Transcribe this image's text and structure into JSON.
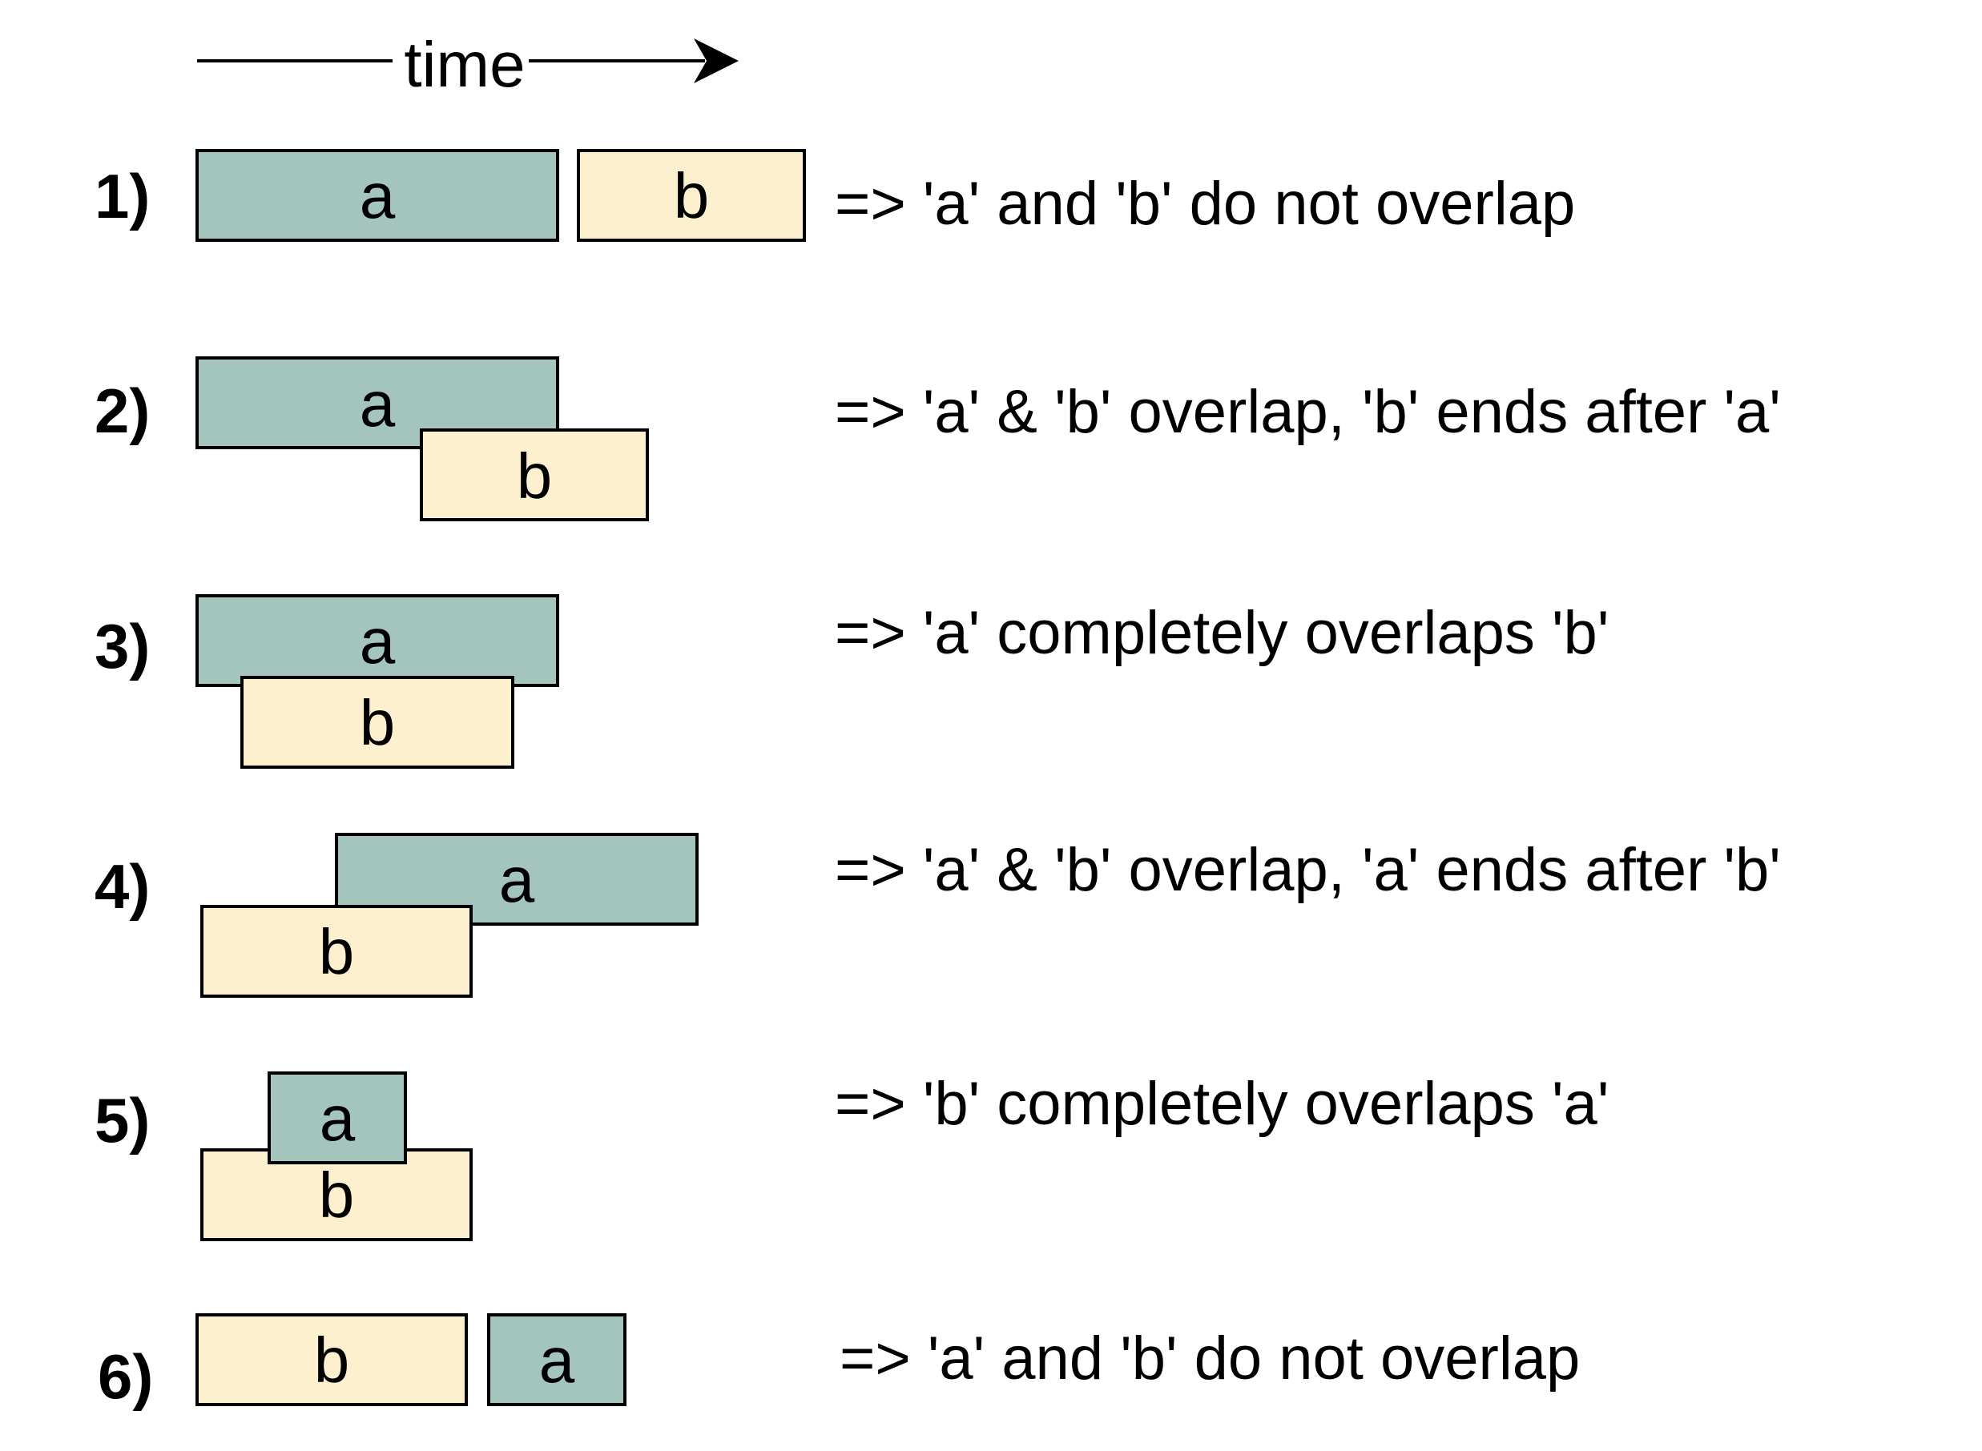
{
  "time_axis": {
    "label": "time"
  },
  "colors": {
    "a": "#a3c5bd",
    "b": "#fdf0cf",
    "stroke": "#000000"
  },
  "rows": [
    {
      "number": "1)",
      "a_label": "a",
      "b_label": "b",
      "description": "=> 'a' and 'b' do not overlap"
    },
    {
      "number": "2)",
      "a_label": "a",
      "b_label": "b",
      "description": "=> 'a' & 'b' overlap, 'b' ends after 'a'"
    },
    {
      "number": "3)",
      "a_label": "a",
      "b_label": "b",
      "description": "=> 'a' completely overlaps 'b'"
    },
    {
      "number": "4)",
      "a_label": "a",
      "b_label": "b",
      "description": "=> 'a' & 'b' overlap, 'a' ends after 'b'"
    },
    {
      "number": "5)",
      "a_label": "a",
      "b_label": "b",
      "description": "=> 'b' completely overlaps 'a'"
    },
    {
      "number": "6)",
      "a_label": "a",
      "b_label": "b",
      "description": "=> 'a' and 'b' do not overlap"
    }
  ]
}
